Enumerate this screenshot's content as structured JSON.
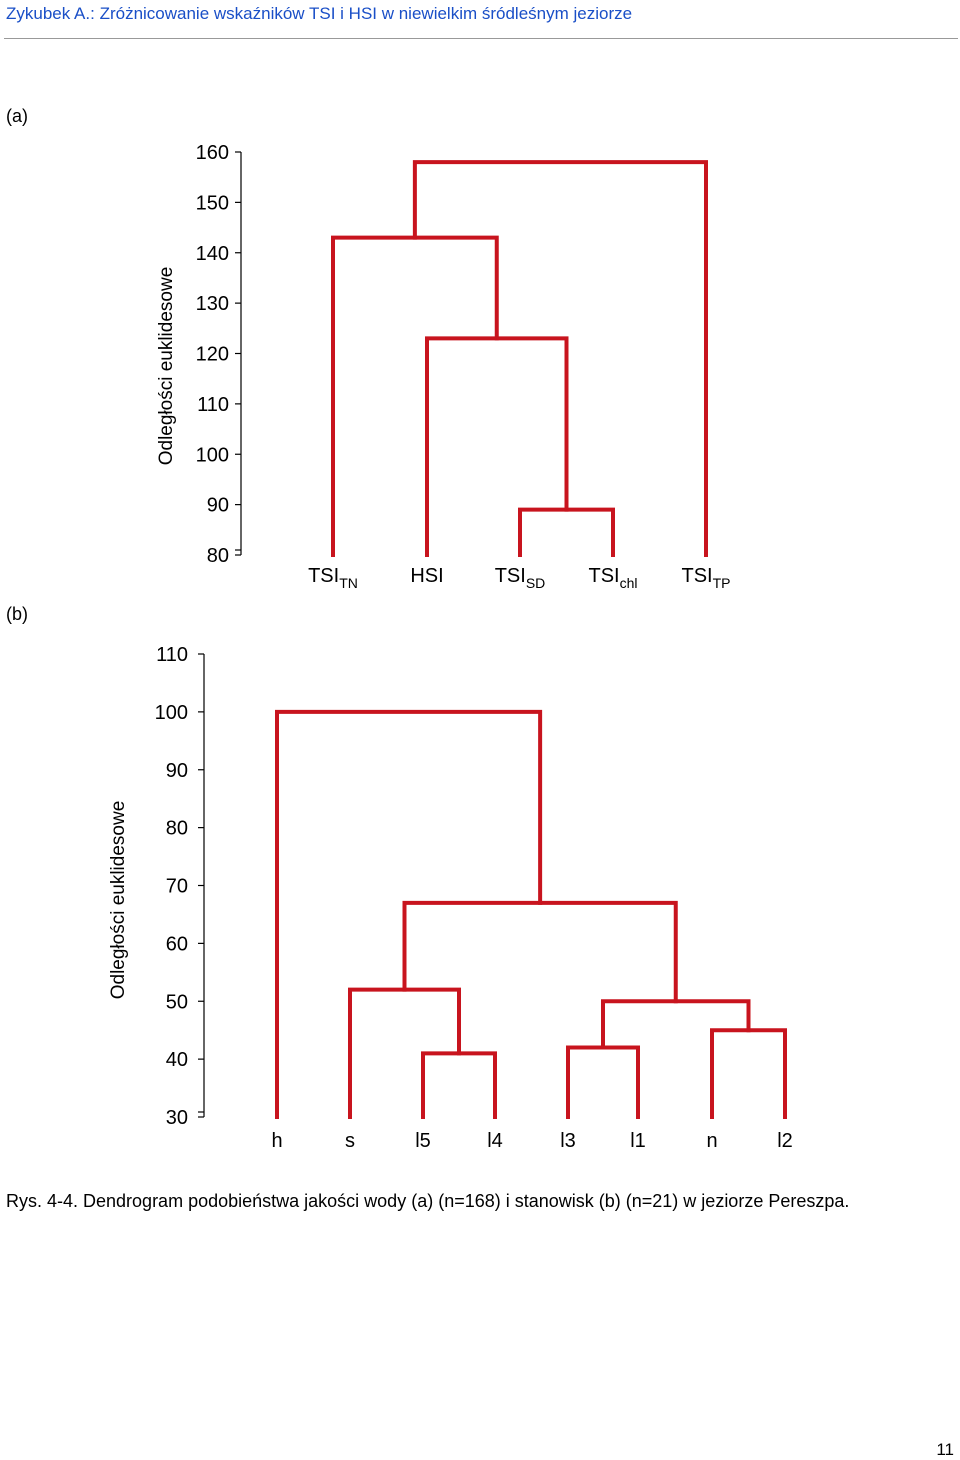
{
  "header": {
    "author": "Zykubek A.",
    "title": "Zróżnicowanie wskaźników TSI i HSI w niewielkim śródleśnym jeziorze"
  },
  "panel_a_label": "(a)",
  "panel_b_label": "(b)",
  "caption": "Rys. 4-4. Dendrogram podobieństwa jakości wody (a) (n=168) i stanowisk (b) (n=21) w jeziorze Pereszpa.",
  "page_number": "11",
  "colors": {
    "branch": "#c8141e",
    "header_text": "#1a4fc7"
  },
  "chart_data": [
    {
      "type": "dendrogram",
      "panel": "(a)",
      "ylabel": "Odległości euklidesowe",
      "ylim": [
        80,
        160
      ],
      "yticks": [
        80,
        90,
        100,
        110,
        120,
        130,
        140,
        150,
        160
      ],
      "leaves": [
        {
          "base": "TSI",
          "sub": "TN"
        },
        {
          "base": "HSI",
          "sub": ""
        },
        {
          "base": "TSI",
          "sub": "SD"
        },
        {
          "base": "TSI",
          "sub": "chl"
        },
        {
          "base": "TSI",
          "sub": "TP"
        }
      ],
      "merges": [
        {
          "left": 2,
          "right": 3,
          "height": 89
        },
        {
          "left": 1,
          "right": "m0",
          "height": 123
        },
        {
          "left": 0,
          "right": "m1",
          "height": 143
        },
        {
          "left": "m2",
          "right": 4,
          "height": 158
        }
      ]
    },
    {
      "type": "dendrogram",
      "panel": "(b)",
      "ylabel": "Odległości euklidesowe",
      "ylim": [
        30,
        110
      ],
      "yticks": [
        30,
        40,
        50,
        60,
        70,
        80,
        90,
        100,
        110
      ],
      "leaves": [
        {
          "base": "h",
          "sub": ""
        },
        {
          "base": "s",
          "sub": ""
        },
        {
          "base": "l5",
          "sub": ""
        },
        {
          "base": "l4",
          "sub": ""
        },
        {
          "base": "l3",
          "sub": ""
        },
        {
          "base": "l1",
          "sub": ""
        },
        {
          "base": "n",
          "sub": ""
        },
        {
          "base": "l2",
          "sub": ""
        }
      ],
      "merges": [
        {
          "left": 2,
          "right": 3,
          "height": 41
        },
        {
          "left": 4,
          "right": 5,
          "height": 42
        },
        {
          "left": 6,
          "right": 7,
          "height": 45
        },
        {
          "left": 1,
          "right": "m0",
          "height": 52
        },
        {
          "left": "m1",
          "right": "m2",
          "height": 50
        },
        {
          "left": "m3",
          "right": "m4",
          "height": 67
        },
        {
          "left": 0,
          "right": "m5",
          "height": 100
        }
      ]
    }
  ]
}
